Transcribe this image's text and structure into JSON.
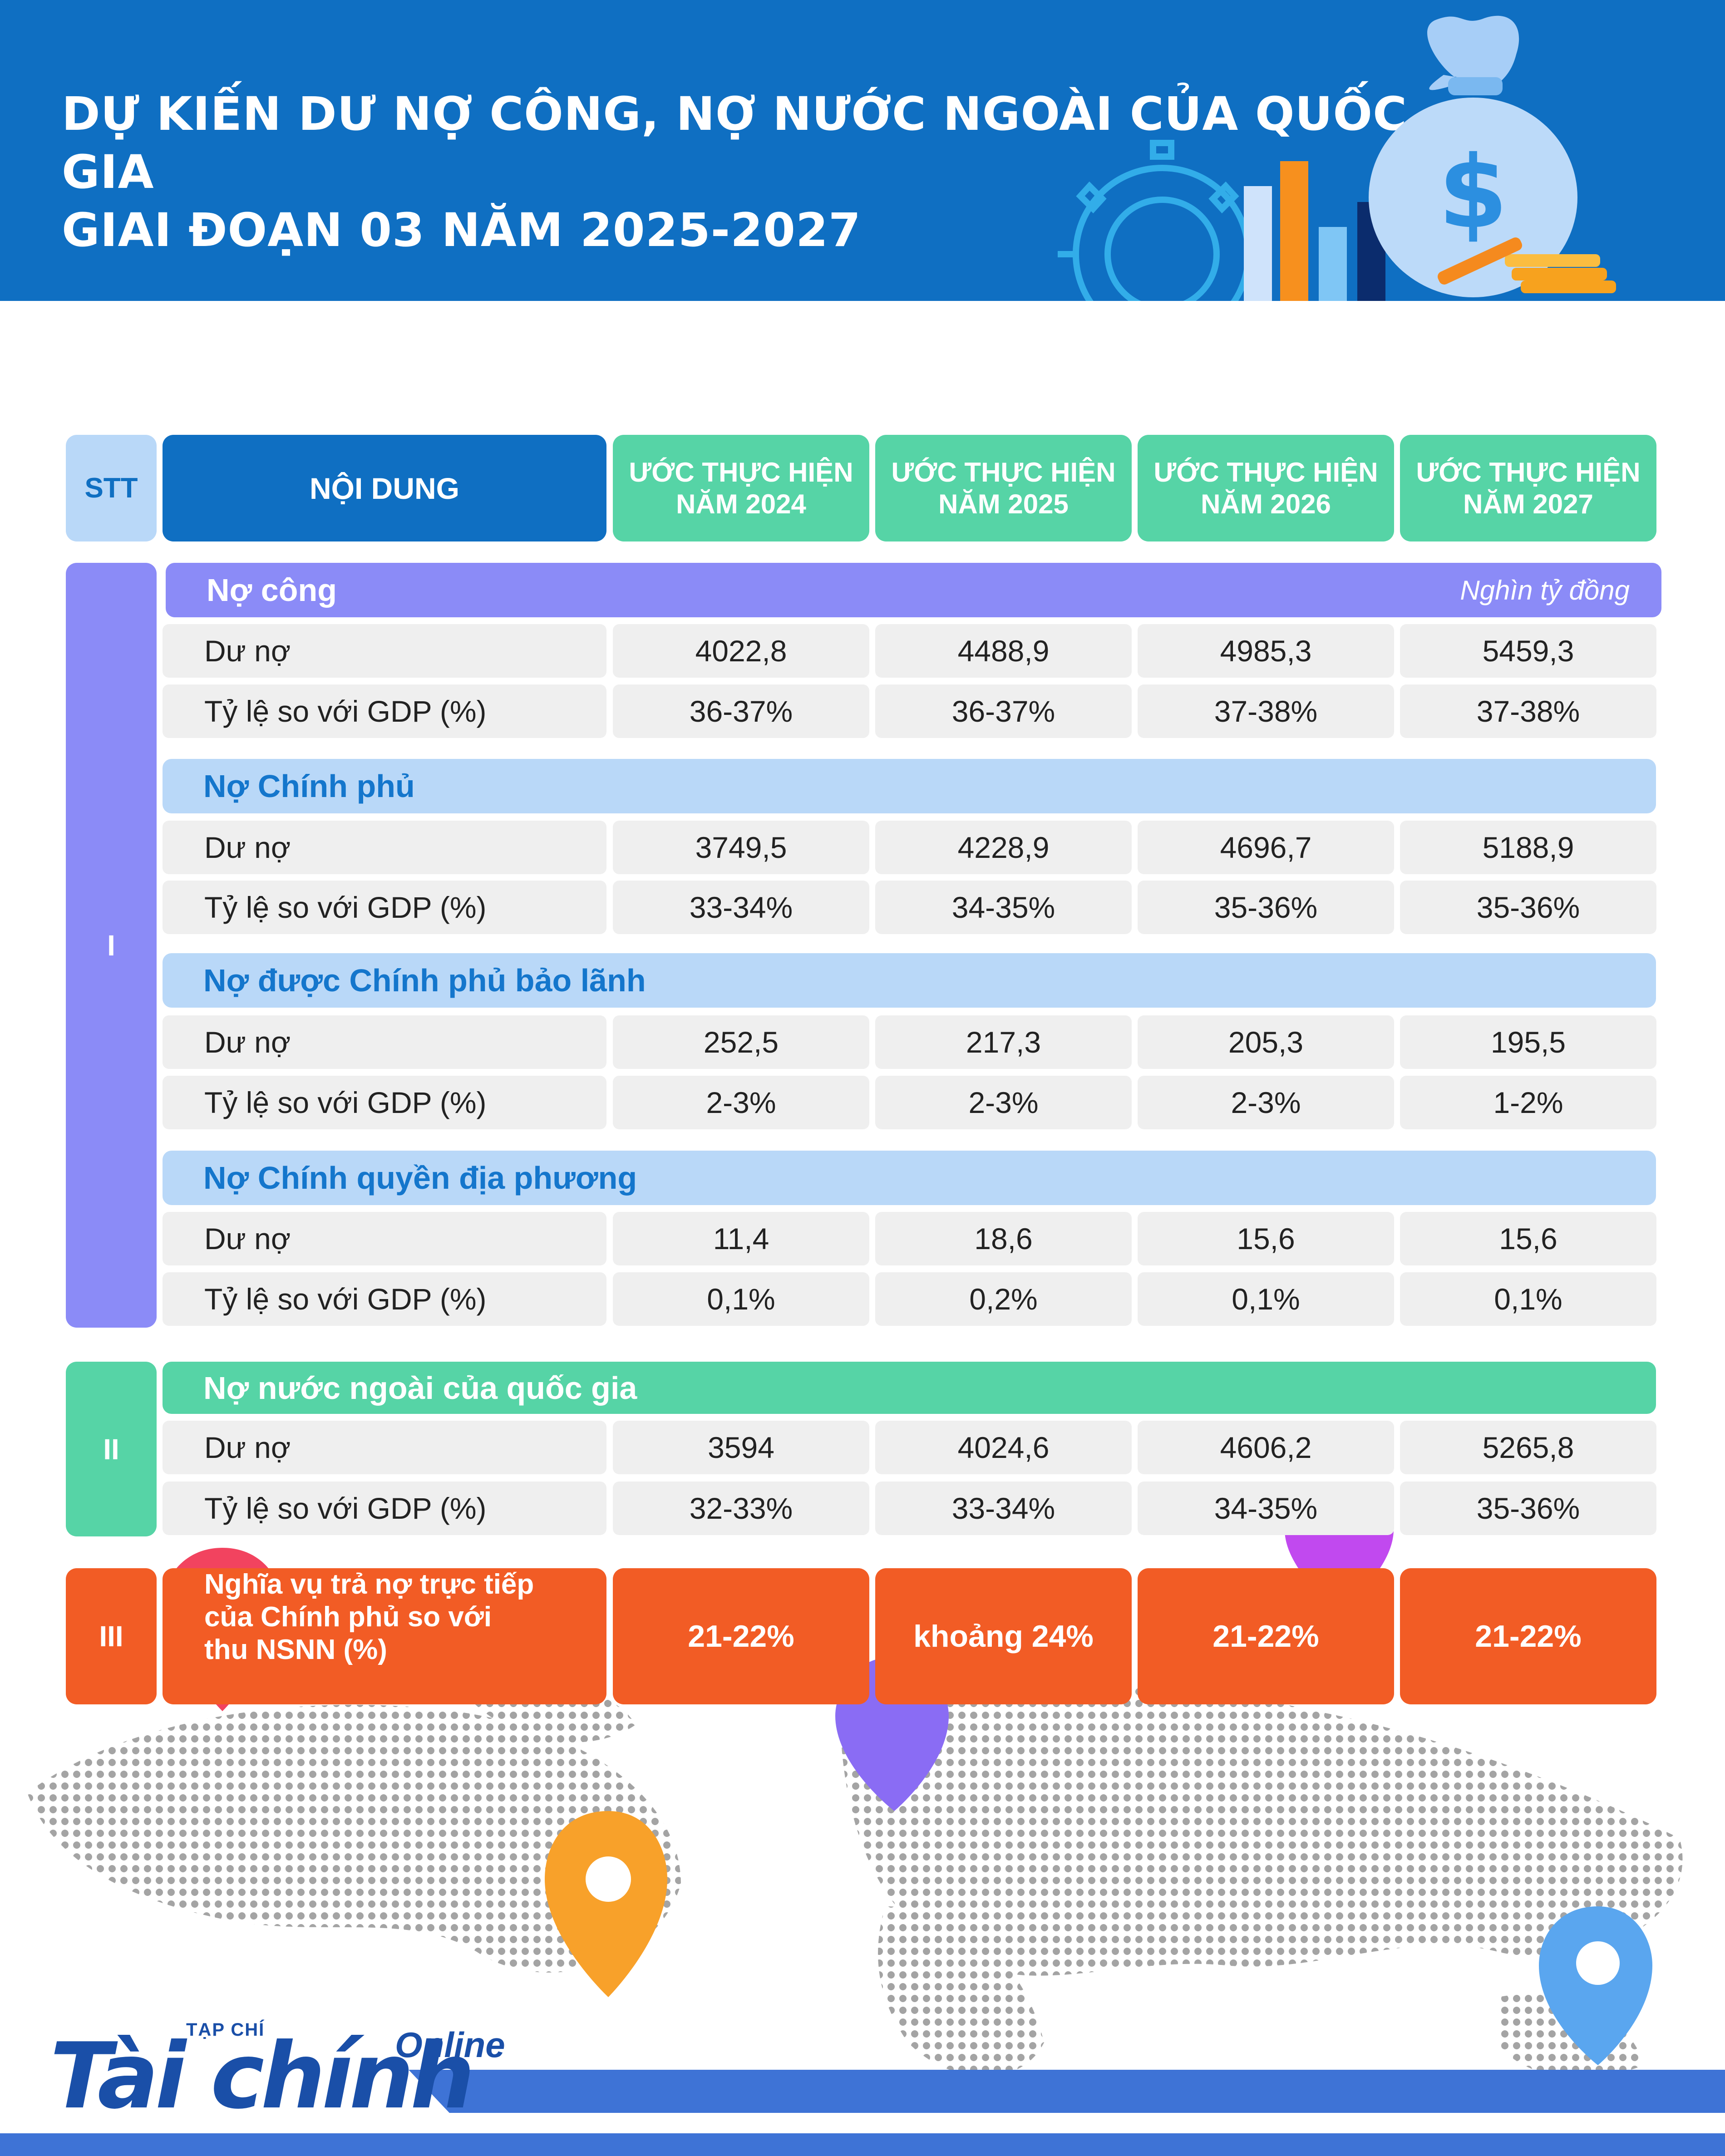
{
  "header": {
    "title_line1": "DỰ KIẾN DƯ NỢ CÔNG, NỢ NƯỚC NGOÀI CỦA QUỐC GIA",
    "title_line2": "GIAI ĐOẠN 03 NĂM 2025-2027"
  },
  "colors": {
    "header_blue": "#0f6fc2",
    "purple": "#8b8bf7",
    "light_blue": "#b9d8f8",
    "green": "#56d4a6",
    "orange": "#f25c25"
  },
  "table": {
    "col_stt": "STT",
    "col_content": "NỘI DUNG",
    "years": [
      {
        "line1": "ƯỚC THỰC HIỆN",
        "line2": "NĂM 2024"
      },
      {
        "line1": "ƯỚC THỰC HIỆN",
        "line2": "NĂM 2025"
      },
      {
        "line1": "ƯỚC THỰC HIỆN",
        "line2": "NĂM 2026"
      },
      {
        "line1": "ƯỚC THỰC HIỆN",
        "line2": "NĂM 2027"
      }
    ],
    "unit": "Nghìn tỷ đồng",
    "row_label_debt": "Dư nợ",
    "row_label_ratio": "Tỷ lệ so với GDP (%)",
    "section1": {
      "roman": "I",
      "groups": [
        {
          "title": "Nợ công",
          "debt": [
            "4022,8",
            "4488,9",
            "4985,3",
            "5459,3"
          ],
          "ratio": [
            "36-37%",
            "36-37%",
            "37-38%",
            "37-38%"
          ]
        },
        {
          "title": "Nợ Chính phủ",
          "debt": [
            "3749,5",
            "4228,9",
            "4696,7",
            "5188,9"
          ],
          "ratio": [
            "33-34%",
            "34-35%",
            "35-36%",
            "35-36%"
          ]
        },
        {
          "title": "Nợ được Chính phủ bảo lãnh",
          "debt": [
            "252,5",
            "217,3",
            "205,3",
            "195,5"
          ],
          "ratio": [
            "2-3%",
            "2-3%",
            "2-3%",
            "1-2%"
          ]
        },
        {
          "title": "Nợ Chính quyền địa phương",
          "debt": [
            "11,4",
            "18,6",
            "15,6",
            "15,6"
          ],
          "ratio": [
            "0,1%",
            "0,2%",
            "0,1%",
            "0,1%"
          ]
        }
      ]
    },
    "section2": {
      "roman": "II",
      "title": "Nợ nước ngoài của quốc gia",
      "debt": [
        "3594",
        "4024,6",
        "4606,2",
        "5265,8"
      ],
      "ratio": [
        "32-33%",
        "33-34%",
        "34-35%",
        "35-36%"
      ]
    },
    "section3": {
      "roman": "III",
      "label_line1": "Nghĩa vụ trả nợ trực tiếp",
      "label_line2": "của Chính phủ so với",
      "label_line3": "thu NSNN (%)",
      "values": [
        "21-22%",
        "khoảng 24%",
        "21-22%",
        "21-22%"
      ]
    }
  },
  "logo": {
    "small": "TẠP CHÍ",
    "main": "Tài chính",
    "online": "Online"
  }
}
